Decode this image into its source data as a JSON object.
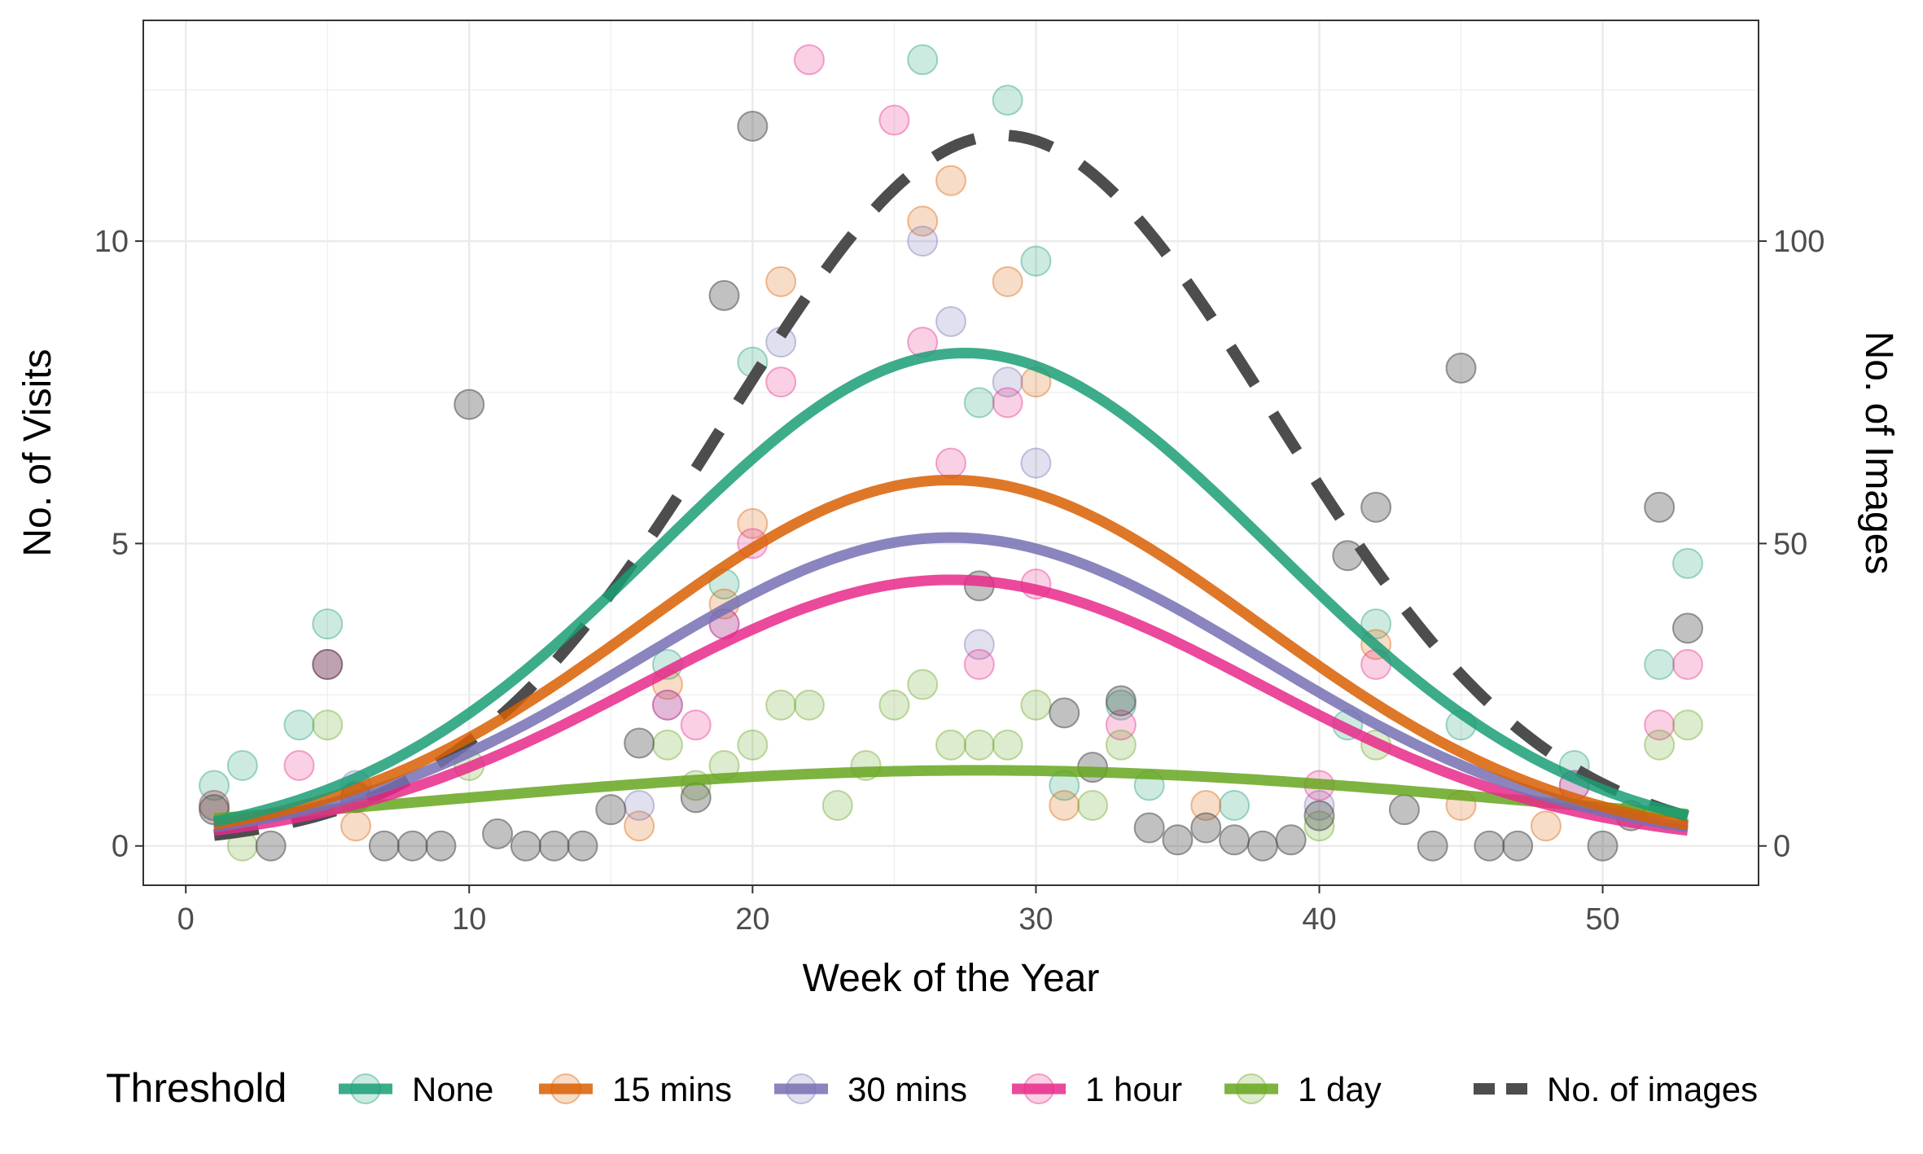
{
  "chart_data": {
    "type": "line",
    "x_axis": {
      "label": "Week of the Year",
      "range": [
        -1.5,
        55.5
      ],
      "ticks": [
        0,
        10,
        20,
        30,
        40,
        50
      ],
      "tick_labels": [
        "0",
        "10",
        "20",
        "30",
        "40",
        "50"
      ]
    },
    "y_axis_left": {
      "label": "No. of Visits",
      "range": [
        -0.65,
        13.65
      ],
      "ticks": [
        0,
        5,
        10
      ],
      "tick_labels": [
        "0",
        "5",
        "10"
      ]
    },
    "y_axis_right": {
      "label": "No. of Images",
      "range": [
        -6.5,
        136.5
      ],
      "ticks": [
        0,
        50,
        100
      ],
      "tick_labels": [
        "0",
        "50",
        "100"
      ]
    },
    "grid": true,
    "legend": {
      "position": "bottom",
      "title": "Threshold",
      "entries": [
        {
          "label": "None",
          "color": "#1b9e77",
          "style": "solid"
        },
        {
          "label": "15 mins",
          "color": "#d95f02",
          "style": "solid"
        },
        {
          "label": "30 mins",
          "color": "#7570b3",
          "style": "solid"
        },
        {
          "label": "1 hour",
          "color": "#e7298a",
          "style": "solid"
        },
        {
          "label": "1 day",
          "color": "#66a61e",
          "style": "solid"
        },
        {
          "label": "No. of images",
          "color": "#4d4d4d",
          "style": "dashed"
        }
      ]
    },
    "series": [
      {
        "name": "None",
        "color": "#1b9e77",
        "axis": "left",
        "curve": {
          "peak": 8.15,
          "center": 27.5,
          "width": 10.8,
          "base": 0
        },
        "points": [
          [
            1,
            1.0
          ],
          [
            2,
            1.33
          ],
          [
            4,
            2.0
          ],
          [
            5,
            3.67
          ],
          [
            6,
            0.83
          ],
          [
            17,
            3.0
          ],
          [
            19,
            4.33
          ],
          [
            20,
            8.0
          ],
          [
            26,
            13.0
          ],
          [
            28,
            7.33
          ],
          [
            29,
            12.33
          ],
          [
            30,
            9.67
          ],
          [
            31,
            1.0
          ],
          [
            33,
            2.33
          ],
          [
            34,
            1.0
          ],
          [
            37,
            0.67
          ],
          [
            41,
            2.0
          ],
          [
            42,
            3.67
          ],
          [
            45,
            2.0
          ],
          [
            49,
            1.33
          ],
          [
            52,
            3.0
          ],
          [
            53,
            4.67
          ]
        ]
      },
      {
        "name": "15 mins",
        "color": "#d95f02",
        "axis": "left",
        "curve": {
          "peak": 6.05,
          "center": 27.0,
          "width": 10.9,
          "base": 0
        },
        "points": [
          [
            1,
            0.67
          ],
          [
            6,
            0.33
          ],
          [
            16,
            0.33
          ],
          [
            17,
            2.67
          ],
          [
            19,
            4.0
          ],
          [
            20,
            5.33
          ],
          [
            21,
            9.33
          ],
          [
            26,
            10.33
          ],
          [
            27,
            11.0
          ],
          [
            29,
            9.33
          ],
          [
            30,
            7.67
          ],
          [
            31,
            0.67
          ],
          [
            36,
            0.67
          ],
          [
            42,
            3.33
          ],
          [
            45,
            0.67
          ],
          [
            48,
            0.33
          ]
        ]
      },
      {
        "name": "30 mins",
        "color": "#7570b3",
        "axis": "left",
        "curve": {
          "peak": 5.1,
          "center": 27.0,
          "width": 11.0,
          "base": 0
        },
        "points": [
          [
            1,
            0.67
          ],
          [
            6,
            1.0
          ],
          [
            16,
            0.67
          ],
          [
            17,
            2.33
          ],
          [
            19,
            3.67
          ],
          [
            21,
            8.33
          ],
          [
            26,
            10.0
          ],
          [
            27,
            8.67
          ],
          [
            28,
            3.33
          ],
          [
            29,
            7.67
          ],
          [
            30,
            6.33
          ],
          [
            40,
            0.67
          ],
          [
            49,
            1.0
          ]
        ]
      },
      {
        "name": "1 hour",
        "color": "#e7298a",
        "axis": "left",
        "curve": {
          "peak": 4.4,
          "center": 27.0,
          "width": 10.9,
          "base": 0
        },
        "points": [
          [
            4,
            1.33
          ],
          [
            5,
            3.0
          ],
          [
            17,
            2.33
          ],
          [
            18,
            2.0
          ],
          [
            19,
            3.67
          ],
          [
            20,
            5.0
          ],
          [
            21,
            7.67
          ],
          [
            22,
            13.0
          ],
          [
            25,
            12.0
          ],
          [
            26,
            8.33
          ],
          [
            27,
            6.33
          ],
          [
            28,
            3.0
          ],
          [
            29,
            7.33
          ],
          [
            30,
            4.33
          ],
          [
            33,
            2.0
          ],
          [
            40,
            1.0
          ],
          [
            42,
            3.0
          ],
          [
            49,
            1.0
          ],
          [
            52,
            2.0
          ],
          [
            53,
            3.0
          ]
        ]
      },
      {
        "name": "1 day",
        "color": "#66a61e",
        "axis": "left",
        "curve": {
          "peak": 1.25,
          "center": 28.0,
          "width": 19.0,
          "base": 0
        },
        "points": [
          [
            2,
            0.0
          ],
          [
            5,
            2.0
          ],
          [
            10,
            1.33
          ],
          [
            17,
            1.67
          ],
          [
            18,
            1.0
          ],
          [
            19,
            1.33
          ],
          [
            20,
            1.67
          ],
          [
            21,
            2.33
          ],
          [
            22,
            2.33
          ],
          [
            23,
            0.67
          ],
          [
            24,
            1.33
          ],
          [
            25,
            2.33
          ],
          [
            26,
            2.67
          ],
          [
            27,
            1.67
          ],
          [
            28,
            1.67
          ],
          [
            29,
            1.67
          ],
          [
            30,
            2.33
          ],
          [
            32,
            0.67
          ],
          [
            33,
            1.67
          ],
          [
            40,
            0.33
          ],
          [
            42,
            1.67
          ],
          [
            52,
            1.67
          ],
          [
            53,
            2.0
          ]
        ]
      },
      {
        "name": "No. of images",
        "color": "#4d4d4d",
        "axis": "right",
        "dashed": true,
        "curve": {
          "peak": 117.5,
          "center": 28.8,
          "width": 9.6,
          "base": 0
        },
        "points": [
          [
            1,
            6
          ],
          [
            3,
            0
          ],
          [
            5,
            30
          ],
          [
            6,
            8
          ],
          [
            7,
            0
          ],
          [
            8,
            0
          ],
          [
            9,
            0
          ],
          [
            10,
            73
          ],
          [
            11,
            2
          ],
          [
            12,
            0
          ],
          [
            13,
            0
          ],
          [
            14,
            0
          ],
          [
            15,
            6
          ],
          [
            16,
            17
          ],
          [
            18,
            8
          ],
          [
            19,
            91
          ],
          [
            20,
            119
          ],
          [
            28,
            43
          ],
          [
            31,
            22
          ],
          [
            32,
            13
          ],
          [
            33,
            24
          ],
          [
            34,
            3
          ],
          [
            35,
            1
          ],
          [
            36,
            3
          ],
          [
            37,
            1
          ],
          [
            38,
            0
          ],
          [
            39,
            1
          ],
          [
            40,
            5
          ],
          [
            41,
            48
          ],
          [
            42,
            56
          ],
          [
            43,
            6
          ],
          [
            44,
            0
          ],
          [
            45,
            79
          ],
          [
            46,
            0
          ],
          [
            47,
            0
          ],
          [
            50,
            0
          ],
          [
            51,
            5
          ],
          [
            52,
            56
          ],
          [
            53,
            36
          ]
        ]
      }
    ]
  }
}
